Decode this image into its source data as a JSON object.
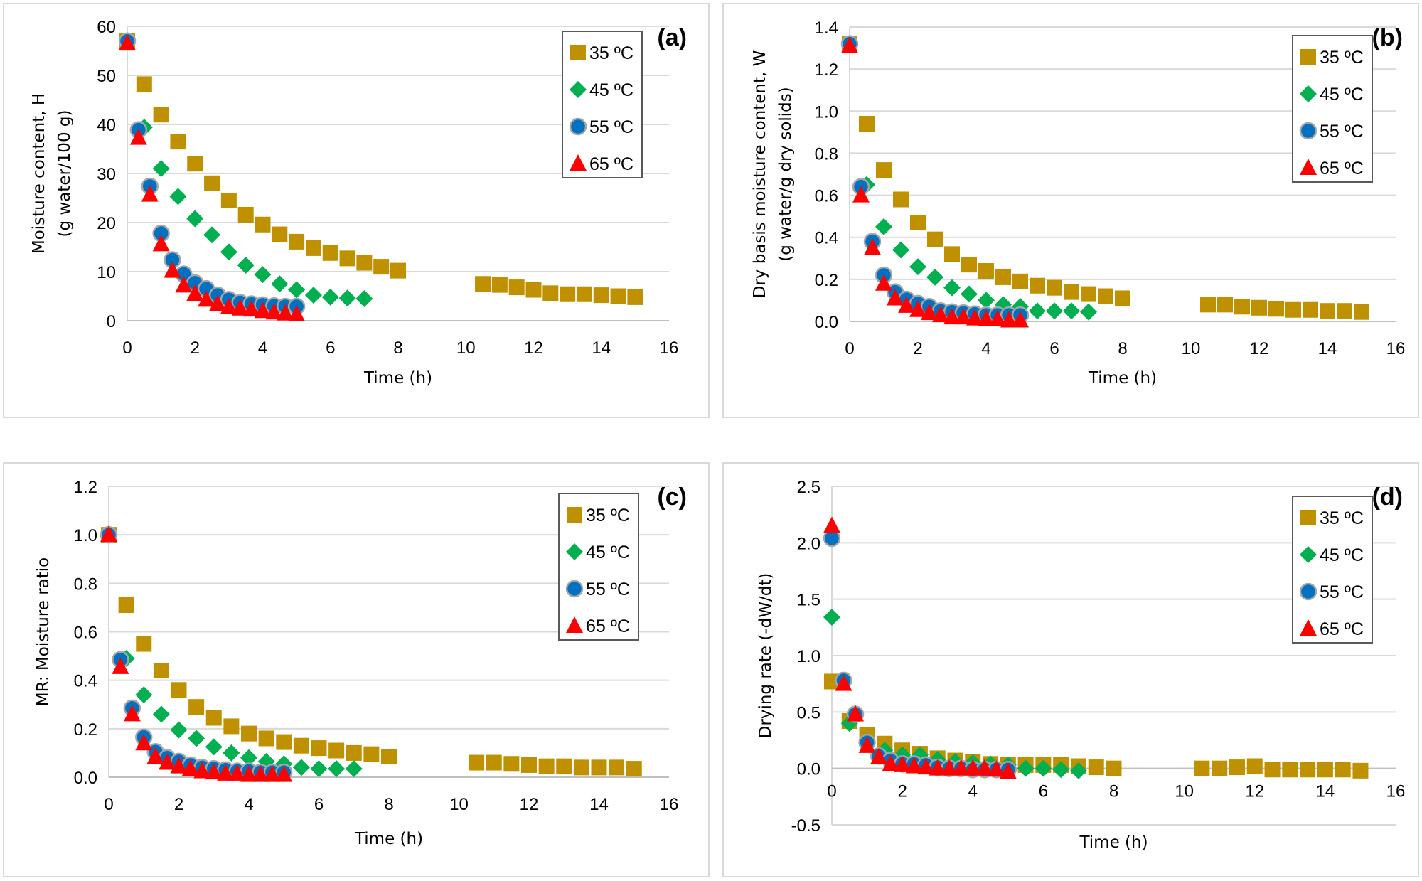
{
  "figure": {
    "legend_entries": [
      "35 ºC",
      "45 ºC",
      "55 ºC",
      "65 ºC"
    ],
    "series_colors": {
      "35": "#BF9000",
      "45": "#00B050",
      "55": "#0070C0",
      "65": "#FF0000"
    },
    "series_markers": {
      "35": "square",
      "45": "diamond",
      "55": "circle",
      "65": "triangle"
    }
  },
  "chart_data": [
    {
      "panel": "(a)",
      "type": "scatter",
      "title": "(a)",
      "xlabel": "Time (h)",
      "ylabel": [
        "Moisture content, H",
        "(g water/100 g)"
      ],
      "xlim": [
        0,
        16
      ],
      "ylim": [
        0,
        60
      ],
      "xticks": [
        0,
        2,
        4,
        6,
        8,
        10,
        12,
        14,
        16
      ],
      "yticks": [
        0,
        10,
        20,
        30,
        40,
        50,
        60
      ],
      "ytick_labels": [
        "0",
        "10",
        "20",
        "30",
        "40",
        "50",
        "60"
      ],
      "grid": true,
      "legend": "top-right",
      "series": [
        {
          "name": "35 ºC",
          "key": "35",
          "x": [
            0,
            0.5,
            1,
            1.5,
            2,
            2.5,
            3,
            3.5,
            4,
            4.5,
            5,
            5.5,
            6,
            6.5,
            7,
            7.5,
            8,
            10.5,
            11,
            11.5,
            12,
            12.5,
            13,
            13.5,
            14,
            14.5,
            15
          ],
          "y": [
            57,
            48.2,
            42,
            36.5,
            32,
            28,
            24.5,
            21.6,
            19.6,
            17.6,
            16.1,
            14.8,
            13.8,
            12.7,
            11.8,
            11,
            10.2,
            7.5,
            7.3,
            6.8,
            6.3,
            5.6,
            5.4,
            5.4,
            5.2,
            5.0,
            4.8
          ]
        },
        {
          "name": "45 ºC",
          "key": "45",
          "x": [
            0,
            0.5,
            1,
            1.5,
            2,
            2.5,
            3,
            3.5,
            4,
            4.5,
            5,
            5.5,
            6,
            6.5,
            7
          ],
          "y": [
            57,
            39.4,
            31,
            25.3,
            20.8,
            17.5,
            14,
            11.3,
            9.4,
            7.5,
            6.3,
            5.2,
            4.8,
            4.6,
            4.5
          ]
        },
        {
          "name": "55 ºC",
          "key": "55",
          "x": [
            0,
            0.333,
            0.667,
            1,
            1.333,
            1.667,
            2,
            2.333,
            2.667,
            3,
            3.333,
            3.667,
            4,
            4.333,
            4.667,
            5
          ],
          "y": [
            57,
            38.9,
            27.4,
            17.8,
            12.4,
            9.5,
            7.7,
            6.5,
            5.2,
            4.3,
            3.7,
            3.4,
            3.2,
            3.0,
            2.9,
            2.9
          ]
        },
        {
          "name": "65 ºC",
          "key": "65",
          "x": [
            0,
            0.333,
            0.667,
            1,
            1.333,
            1.667,
            2,
            2.333,
            2.667,
            3,
            3.333,
            3.667,
            4,
            4.333,
            4.667,
            5
          ],
          "y": [
            56.5,
            37.3,
            25.7,
            15.6,
            10.2,
            7.2,
            5.5,
            4.3,
            3.4,
            2.8,
            2.5,
            2.3,
            2.0,
            1.7,
            1.5,
            1.3
          ]
        }
      ]
    },
    {
      "panel": "(b)",
      "type": "scatter",
      "title": "(b)",
      "xlabel": "Time (h)",
      "ylabel": [
        "Dry basis moisture content, W",
        "(g water/g dry solids)"
      ],
      "xlim": [
        0,
        16
      ],
      "ylim": [
        0,
        1.4
      ],
      "xticks": [
        0,
        2,
        4,
        6,
        8,
        10,
        12,
        14,
        16
      ],
      "yticks": [
        0,
        0.2,
        0.4,
        0.6,
        0.8,
        1.0,
        1.2,
        1.4
      ],
      "ytick_labels": [
        "0.0",
        "0.2",
        "0.4",
        "0.6",
        "0.8",
        "1.0",
        "1.2",
        "1.4"
      ],
      "grid": true,
      "legend": "top-right",
      "series": [
        {
          "name": "35 ºC",
          "key": "35",
          "x": [
            0,
            0.5,
            1,
            1.5,
            2,
            2.5,
            3,
            3.5,
            4,
            4.5,
            5,
            5.5,
            6,
            6.5,
            7,
            7.5,
            8,
            10.5,
            11,
            11.5,
            12,
            12.5,
            13,
            13.5,
            14,
            14.5,
            15
          ],
          "y": [
            1.32,
            0.94,
            0.72,
            0.58,
            0.47,
            0.39,
            0.32,
            0.27,
            0.24,
            0.21,
            0.19,
            0.17,
            0.16,
            0.14,
            0.13,
            0.12,
            0.11,
            0.08,
            0.08,
            0.07,
            0.065,
            0.06,
            0.055,
            0.055,
            0.05,
            0.05,
            0.045
          ]
        },
        {
          "name": "45 ºC",
          "key": "45",
          "x": [
            0,
            0.5,
            1,
            1.5,
            2,
            2.5,
            3,
            3.5,
            4,
            4.5,
            5,
            5.5,
            6,
            6.5,
            7
          ],
          "y": [
            1.32,
            0.65,
            0.45,
            0.34,
            0.26,
            0.21,
            0.16,
            0.13,
            0.1,
            0.08,
            0.07,
            0.05,
            0.05,
            0.05,
            0.045
          ]
        },
        {
          "name": "55 ºC",
          "key": "55",
          "x": [
            0,
            0.333,
            0.667,
            1,
            1.333,
            1.667,
            2,
            2.333,
            2.667,
            3,
            3.333,
            3.667,
            4,
            4.333,
            4.667,
            5
          ],
          "y": [
            1.32,
            0.64,
            0.38,
            0.22,
            0.14,
            0.105,
            0.085,
            0.07,
            0.05,
            0.045,
            0.04,
            0.035,
            0.03,
            0.03,
            0.03,
            0.03
          ]
        },
        {
          "name": "65 ºC",
          "key": "65",
          "x": [
            0,
            0.333,
            0.667,
            1,
            1.333,
            1.667,
            2,
            2.333,
            2.667,
            3,
            3.333,
            3.667,
            4,
            4.333,
            4.667,
            5
          ],
          "y": [
            1.31,
            0.6,
            0.35,
            0.18,
            0.11,
            0.075,
            0.055,
            0.04,
            0.03,
            0.02,
            0.02,
            0.015,
            0.01,
            0.01,
            0.005,
            0.005
          ]
        }
      ]
    },
    {
      "panel": "(c)",
      "type": "scatter",
      "title": "(c)",
      "xlabel": "Time (h)",
      "ylabel": [
        "MR: Moisture ratio"
      ],
      "xlim": [
        0,
        16
      ],
      "ylim": [
        0,
        1.2
      ],
      "xticks": [
        0,
        2,
        4,
        6,
        8,
        10,
        12,
        14,
        16
      ],
      "yticks": [
        0,
        0.2,
        0.4,
        0.6,
        0.8,
        1.0,
        1.2
      ],
      "ytick_labels": [
        "0.0",
        "0.2",
        "0.4",
        "0.6",
        "0.8",
        "1.0",
        "1.2"
      ],
      "grid": true,
      "legend": "top-right",
      "series": [
        {
          "name": "35 ºC",
          "key": "35",
          "x": [
            0,
            0.5,
            1,
            1.5,
            2,
            2.5,
            3,
            3.5,
            4,
            4.5,
            5,
            5.5,
            6,
            6.5,
            7,
            7.5,
            8,
            10.5,
            11,
            11.5,
            12,
            12.5,
            13,
            13.5,
            14,
            14.5,
            15
          ],
          "y": [
            1.0,
            0.71,
            0.55,
            0.44,
            0.36,
            0.29,
            0.245,
            0.21,
            0.18,
            0.16,
            0.145,
            0.13,
            0.12,
            0.11,
            0.1,
            0.095,
            0.085,
            0.06,
            0.06,
            0.055,
            0.05,
            0.045,
            0.045,
            0.04,
            0.04,
            0.04,
            0.035
          ]
        },
        {
          "name": "45 ºC",
          "key": "45",
          "x": [
            0,
            0.5,
            1,
            1.5,
            2,
            2.5,
            3,
            3.5,
            4,
            4.5,
            5,
            5.5,
            6,
            6.5,
            7
          ],
          "y": [
            1.0,
            0.49,
            0.34,
            0.26,
            0.195,
            0.16,
            0.125,
            0.1,
            0.08,
            0.065,
            0.055,
            0.04,
            0.035,
            0.035,
            0.035
          ]
        },
        {
          "name": "55 ºC",
          "key": "55",
          "x": [
            0,
            0.333,
            0.667,
            1,
            1.333,
            1.667,
            2,
            2.333,
            2.667,
            3,
            3.333,
            3.667,
            4,
            4.333,
            4.667,
            5
          ],
          "y": [
            1.0,
            0.485,
            0.285,
            0.165,
            0.105,
            0.08,
            0.065,
            0.05,
            0.04,
            0.035,
            0.03,
            0.025,
            0.025,
            0.02,
            0.02,
            0.02
          ]
        },
        {
          "name": "65 ºC",
          "key": "65",
          "x": [
            0,
            0.333,
            0.667,
            1,
            1.333,
            1.667,
            2,
            2.333,
            2.667,
            3,
            3.333,
            3.667,
            4,
            4.333,
            4.667,
            5
          ],
          "y": [
            1.0,
            0.455,
            0.26,
            0.14,
            0.085,
            0.06,
            0.045,
            0.035,
            0.025,
            0.02,
            0.015,
            0.015,
            0.01,
            0.01,
            0.01,
            0.01
          ]
        }
      ]
    },
    {
      "panel": "(d)",
      "type": "scatter",
      "title": "(d)",
      "xlabel": "Time (h)",
      "ylabel": [
        "Drying rate (-dW/dt)"
      ],
      "xlim": [
        0,
        16
      ],
      "ylim": [
        -0.5,
        2.5
      ],
      "xticks": [
        0,
        2,
        4,
        6,
        8,
        10,
        12,
        14,
        16
      ],
      "yticks": [
        -0.5,
        0,
        0.5,
        1.0,
        1.5,
        2.0,
        2.5
      ],
      "ytick_labels": [
        "-0.5",
        "0.0",
        "0.5",
        "1.0",
        "1.5",
        "2.0",
        "2.5"
      ],
      "grid": true,
      "legend": "top-right",
      "series": [
        {
          "name": "35 ºC",
          "key": "35",
          "x": [
            0,
            0.5,
            1,
            1.5,
            2,
            2.5,
            3,
            3.5,
            4,
            4.5,
            5,
            5.5,
            6,
            6.5,
            7,
            7.5,
            8,
            10.5,
            11,
            11.5,
            12,
            12.5,
            13,
            13.5,
            14,
            14.5,
            15
          ],
          "y": [
            0.77,
            0.42,
            0.3,
            0.22,
            0.16,
            0.13,
            0.09,
            0.07,
            0.06,
            0.04,
            0.03,
            0.03,
            0.03,
            0.03,
            0.02,
            0.01,
            0.0,
            0.0,
            0.0,
            0.01,
            0.02,
            -0.01,
            -0.01,
            -0.01,
            -0.01,
            -0.01,
            -0.02
          ]
        },
        {
          "name": "45 ºC",
          "key": "45",
          "x": [
            0,
            0.5,
            1,
            1.5,
            2,
            2.5,
            3,
            3.5,
            4,
            4.5,
            5,
            5.5,
            6,
            6.5,
            7
          ],
          "y": [
            1.34,
            0.4,
            0.24,
            0.16,
            0.12,
            0.12,
            0.08,
            0.06,
            0.05,
            0.04,
            0.03,
            0.0,
            0.0,
            -0.01,
            -0.02
          ]
        },
        {
          "name": "55 ºC",
          "key": "55",
          "x": [
            0,
            0.333,
            0.667,
            1,
            1.333,
            1.667,
            2,
            2.333,
            2.667,
            3,
            3.333,
            3.667,
            4,
            4.333,
            4.667,
            5
          ],
          "y": [
            2.04,
            0.78,
            0.48,
            0.23,
            0.11,
            0.07,
            0.04,
            0.04,
            0.03,
            0.01,
            0.0,
            0.0,
            -0.01,
            -0.01,
            -0.01,
            -0.01
          ]
        },
        {
          "name": "65 ºC",
          "key": "65",
          "x": [
            0,
            0.333,
            0.667,
            1,
            1.333,
            1.667,
            2,
            2.333,
            2.667,
            3,
            3.333,
            3.667,
            4,
            4.333,
            4.667,
            5
          ],
          "y": [
            2.15,
            0.75,
            0.48,
            0.2,
            0.1,
            0.04,
            0.03,
            0.02,
            0.01,
            0.0,
            0.0,
            0.0,
            0.0,
            0.0,
            -0.01,
            -0.03
          ]
        }
      ]
    }
  ]
}
